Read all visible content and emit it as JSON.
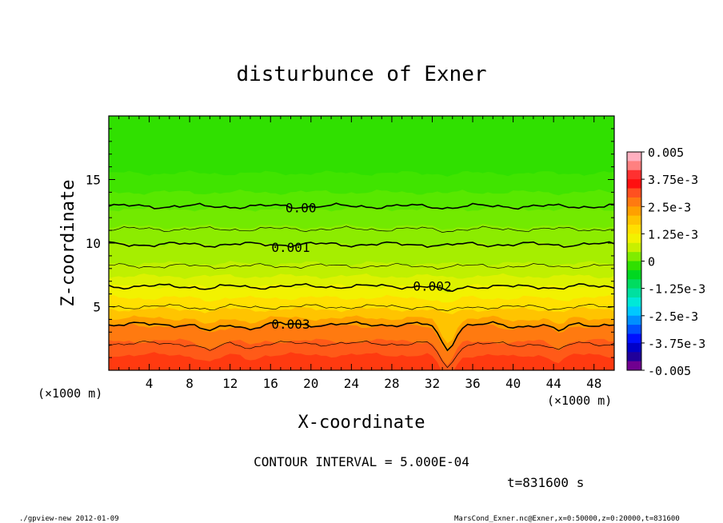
{
  "chart_data": {
    "type": "heatmap",
    "title": "disturbunce of Exner",
    "xlabel": "X-coordinate",
    "ylabel": "Z-coordinate",
    "x_unit_left": "(×1000 m)",
    "x_unit_right": "(×1000 m)",
    "xlim": [
      0,
      50
    ],
    "ylim": [
      0,
      20
    ],
    "x_ticks": [
      4,
      8,
      12,
      16,
      20,
      24,
      28,
      32,
      36,
      40,
      44,
      48
    ],
    "y_ticks": [
      5,
      10,
      15
    ],
    "contour_interval_text": "CONTOUR INTERVAL = 5.000E-04",
    "time_text": "t=831600 s",
    "colorbar": {
      "labels": [
        "0.005",
        "3.75e-3",
        "2.5e-3",
        "1.25e-3",
        "0",
        "-1.25e-3",
        "-2.5e-3",
        "-3.75e-3",
        "-0.005"
      ],
      "range": [
        -0.005,
        0.005
      ],
      "colors": [
        "#ffb0c0",
        "#ff8080",
        "#ff3030",
        "#ff1010",
        "#ff5020",
        "#ff7a10",
        "#ffa000",
        "#ffc400",
        "#ffe000",
        "#f2f200",
        "#c8f000",
        "#80ec00",
        "#30e000",
        "#00d820",
        "#00dc60",
        "#00e0a0",
        "#00e8d8",
        "#00c8ff",
        "#0090ff",
        "#0050ff",
        "#0010ff",
        "#0000c8",
        "#20009a",
        "#700090"
      ]
    },
    "contour_levels": [
      {
        "label": "0.00",
        "z": 12.9,
        "label_x": 19
      },
      {
        "label": "0.001",
        "z": 9.9,
        "label_x": 18
      },
      {
        "label": "0.002",
        "z": 6.6,
        "label_x": 32
      },
      {
        "label": "0.003",
        "z": 3.6,
        "label_x": 18
      }
    ],
    "unlabeled_contour_z": [
      11.1,
      8.2,
      5.0,
      2.1
    ]
  },
  "footer": {
    "left": "./gpview-new   2012-01-09",
    "right": "MarsCond_Exner.nc@Exner,x=0:50000,z=0:20000,t=831600"
  }
}
